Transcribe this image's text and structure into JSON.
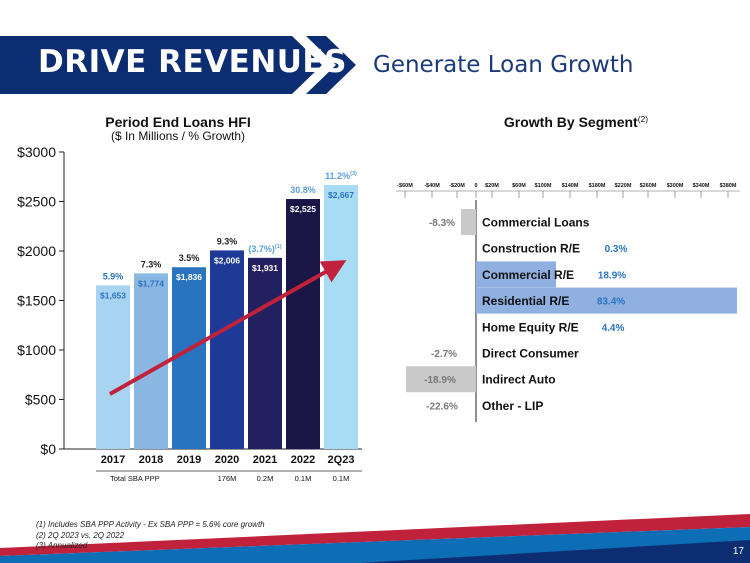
{
  "header": {
    "title": "DRIVE REVENUES",
    "subtitle": "Generate Loan Growth"
  },
  "footnotes": [
    "(1) Includes SBA PPP Activity - Ex SBA PPP = 5.6% core growth",
    "(2) 2Q 2023 vs. 2Q 2022",
    "(3) Annualized"
  ],
  "page_number": "17",
  "chart_data": [
    {
      "type": "bar",
      "title": "Period End Loans HFI",
      "subtitle": "($ In Millions / % Growth)",
      "categories": [
        "2017",
        "2018",
        "2019",
        "2020",
        "2021",
        "2022",
        "2Q23"
      ],
      "values": [
        1653,
        1774,
        1836,
        2006,
        1931,
        2525,
        2667
      ],
      "value_labels": [
        "$1,653",
        "$1,774",
        "$1,836",
        "$2,006",
        "$1,931",
        "$2,525",
        "$2,667"
      ],
      "growth_labels": [
        "5.9%",
        "7.3%",
        "3.5%",
        "9.3%",
        "(3.7%)",
        "30.8%",
        "11.2%"
      ],
      "growth_superscripts": [
        "",
        "",
        "",
        "",
        "(1)",
        "",
        "(3)"
      ],
      "bar_colors": [
        "#a8d4f2",
        "#8ab6e2",
        "#2a73bf",
        "#1f3a96",
        "#22205e",
        "#1a1646",
        "#a8dcf5"
      ],
      "growth_colors": [
        "#2a73bf",
        "#222222",
        "#222222",
        "#222222",
        "#5a9fd6",
        "#5a9fd6",
        "#5a9fd6"
      ],
      "y_ticks": [
        "$0",
        "$500",
        "$1000",
        "$1500",
        "$2000",
        "$2500",
        "$3000"
      ],
      "ylim": [
        0,
        3000
      ],
      "ppp_row_label": "Total SBA PPP",
      "ppp_values": [
        "",
        "",
        "",
        "176M",
        "0.2M",
        "0.1M",
        "0.1M"
      ],
      "trend_arrow_color": "#c0213b"
    },
    {
      "type": "bar",
      "orientation": "horizontal",
      "title": "Growth By Segment",
      "title_superscript": "(2)",
      "categories": [
        "Commercial Loans",
        "Construction R/E",
        "Commercial R/E",
        "Residential R/E",
        "Home Equity R/E",
        "Direct Consumer",
        "Indirect Auto",
        "Other - LIP"
      ],
      "values": [
        -15,
        0,
        80,
        261,
        0,
        0,
        -70,
        0
      ],
      "value_unit": "$M",
      "pct_labels": [
        "-8.3%",
        "0.3%",
        "18.9%",
        "83.4%",
        "4.4%",
        "-2.7%",
        "-18.9%",
        "-22.6%"
      ],
      "bar_colors": [
        "#c9c9c9",
        "#8fb0e0",
        "#8fb0e0",
        "#8fb0e0",
        "#8fb0e0",
        "#c9c9c9",
        "#c9c9c9",
        "#c9c9c9"
      ],
      "x_ticks": [
        "-$60M",
        "-$40M",
        "-$20M",
        "0",
        "$20M",
        "$60M",
        "$100M",
        "$140M",
        "$180M",
        "$220M",
        "$260M",
        "$300M",
        "$340M",
        "$380M"
      ],
      "xlim": [
        -70,
        270
      ]
    }
  ]
}
